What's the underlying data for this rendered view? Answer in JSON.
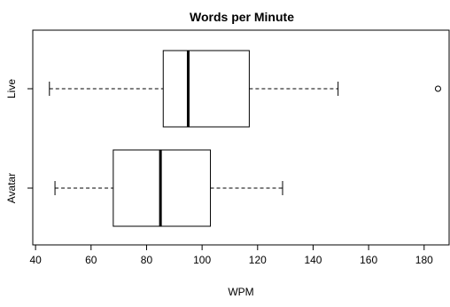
{
  "chart_data": {
    "type": "boxplot",
    "orientation": "horizontal",
    "title": "Words per Minute",
    "xlabel": "WPM",
    "ylabel": "",
    "xlim": [
      39,
      189
    ],
    "xticks": [
      40,
      60,
      80,
      100,
      120,
      140,
      160,
      180
    ],
    "grid": false,
    "legend": "none",
    "categories": [
      "Live",
      "Avatar"
    ],
    "boxes": [
      {
        "name": "Live",
        "whisker_low": 45,
        "q1": 86,
        "median": 95,
        "q3": 117,
        "whisker_high": 149,
        "outliers": [
          185
        ]
      },
      {
        "name": "Avatar",
        "whisker_low": 47,
        "q1": 68,
        "median": 85,
        "q3": 103,
        "whisker_high": 129,
        "outliers": []
      }
    ]
  }
}
